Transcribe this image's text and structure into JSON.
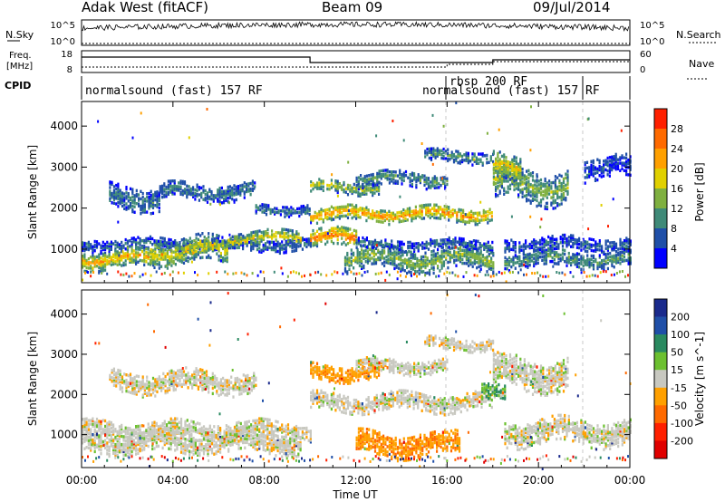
{
  "header": {
    "radar_title": "Adak West (fitACF)",
    "beam": "Beam 09",
    "date": "09/Jul/2014"
  },
  "nsky_panel": {
    "left_label": "N.Sky",
    "right_label": "N.Search",
    "left_ticks": [
      "10^5",
      "10^0"
    ],
    "right_ticks": [
      "10^5",
      "10^0"
    ]
  },
  "freq_panel": {
    "left_label_1": "Freq.",
    "left_label_2": "[MHz]",
    "left_ticks": [
      "18",
      "8"
    ],
    "right_label": "Nave",
    "right_ticks": [
      "60",
      "0"
    ]
  },
  "cpid_panel": {
    "label": "CPID",
    "segments": [
      {
        "text": "normalsound (fast) 157 RF",
        "start_h": 0
      },
      {
        "text": "rbsp 200 RF",
        "start_h": 16
      },
      {
        "text": "normalsound (fast) 157 RF",
        "start_h": 16
      }
    ]
  },
  "chart_data": [
    {
      "type": "heatmap",
      "name_label": "power-panel",
      "ylabel": "Slant Range [km]",
      "y_ticks": [
        "1000",
        "2000",
        "3000",
        "4000"
      ],
      "ylim": [
        180,
        4600
      ],
      "x_ticks": [
        "00:00",
        "04:00",
        "08:00",
        "12:00",
        "16:00",
        "20:00",
        "00:00"
      ],
      "colorbar_label": "Power [dB]",
      "colorbar_ticks": [
        "28",
        "24",
        "20",
        "16",
        "12",
        "8",
        "4"
      ],
      "colorbar_colors": [
        "#0000ff",
        "#1f4fa8",
        "#3f8a78",
        "#7fb040",
        "#e0d000",
        "#ffa000",
        "#ff6a00",
        "#ff2000"
      ],
      "echo_bands": [
        {
          "t_start": 1.2,
          "t_end": 3.4,
          "r_center": 2300,
          "r_width": 280,
          "power": 8
        },
        {
          "t_start": 3.4,
          "t_end": 7.6,
          "r_center": 2450,
          "r_width": 200,
          "power": 8
        },
        {
          "t_start": 7.6,
          "t_end": 10.0,
          "r_center": 2000,
          "r_width": 120,
          "power": 8
        },
        {
          "t_start": 0.0,
          "t_end": 10.0,
          "r_center": 1150,
          "r_width": 150,
          "power": 6
        },
        {
          "t_start": 0.0,
          "t_end": 3.2,
          "r_center": 800,
          "r_width": 220,
          "power": 22
        },
        {
          "t_start": 3.0,
          "t_end": 6.4,
          "r_center": 1000,
          "r_width": 300,
          "power": 18
        },
        {
          "t_start": 6.4,
          "t_end": 9.6,
          "r_center": 1300,
          "r_width": 160,
          "power": 20
        },
        {
          "t_start": 10.0,
          "t_end": 18.0,
          "r_center": 1900,
          "r_width": 180,
          "power": 24
        },
        {
          "t_start": 10.0,
          "t_end": 12.0,
          "r_center": 1300,
          "r_width": 220,
          "power": 26
        },
        {
          "t_start": 10.0,
          "t_end": 13.0,
          "r_center": 2550,
          "r_width": 150,
          "power": 16
        },
        {
          "t_start": 12.0,
          "t_end": 16.0,
          "r_center": 2750,
          "r_width": 180,
          "power": 10
        },
        {
          "t_start": 11.5,
          "t_end": 18.0,
          "r_center": 800,
          "r_width": 280,
          "power": 14
        },
        {
          "t_start": 12.0,
          "t_end": 18.0,
          "r_center": 1150,
          "r_width": 120,
          "power": 6
        },
        {
          "t_start": 15.0,
          "t_end": 18.0,
          "r_center": 3300,
          "r_width": 150,
          "power": 10
        },
        {
          "t_start": 18.0,
          "t_end": 21.3,
          "r_center": 2600,
          "r_width": 400,
          "power": 14
        },
        {
          "t_start": 18.0,
          "t_end": 19.2,
          "r_center": 3000,
          "r_width": 300,
          "power": 20
        },
        {
          "t_start": 18.5,
          "t_end": 24.0,
          "r_center": 1150,
          "r_width": 160,
          "power": 6
        },
        {
          "t_start": 18.5,
          "t_end": 24.0,
          "r_center": 800,
          "r_width": 200,
          "power": 10
        },
        {
          "t_start": 22.0,
          "t_end": 24.0,
          "r_center": 3000,
          "r_width": 250,
          "power": 4
        }
      ]
    },
    {
      "type": "heatmap",
      "name_label": "velocity-panel",
      "ylabel": "Slant Range [km]",
      "y_ticks": [
        "1000",
        "2000",
        "3000",
        "4000"
      ],
      "ylim": [
        180,
        4600
      ],
      "x_ticks": [
        "00:00",
        "04:00",
        "08:00",
        "12:00",
        "16:00",
        "20:00",
        "00:00"
      ],
      "xlabel": "Time UT",
      "colorbar_label": "Velocity [m s^-1]",
      "colorbar_ticks": [
        "200",
        "100",
        "50",
        "15",
        "-15",
        "-50",
        "-100",
        "-200"
      ],
      "colorbar_colors": [
        "#1a2a8c",
        "#1f4fa8",
        "#2a8a60",
        "#6cc030",
        "#c8c8c0",
        "#ffa000",
        "#ff6a00",
        "#ff2000",
        "#e00000"
      ],
      "echo_bands": [
        {
          "t_start": 1.2,
          "t_end": 7.6,
          "r_center": 2350,
          "r_width": 260,
          "velocity": 0
        },
        {
          "t_start": 0.0,
          "t_end": 10.0,
          "r_center": 1150,
          "r_width": 220,
          "velocity": 0
        },
        {
          "t_start": 0.0,
          "t_end": 9.6,
          "r_center": 850,
          "r_width": 260,
          "velocity": 0
        },
        {
          "t_start": 10.0,
          "t_end": 18.0,
          "r_center": 1850,
          "r_width": 220,
          "velocity": 0
        },
        {
          "t_start": 10.0,
          "t_end": 13.0,
          "r_center": 2600,
          "r_width": 200,
          "velocity": -40
        },
        {
          "t_start": 12.0,
          "t_end": 16.0,
          "r_center": 2750,
          "r_width": 180,
          "velocity": 0
        },
        {
          "t_start": 12.0,
          "t_end": 16.5,
          "r_center": 800,
          "r_width": 280,
          "velocity": -40
        },
        {
          "t_start": 15.0,
          "t_end": 18.0,
          "r_center": 3300,
          "r_width": 150,
          "velocity": 0
        },
        {
          "t_start": 18.0,
          "t_end": 21.3,
          "r_center": 2550,
          "r_width": 400,
          "velocity": 0
        },
        {
          "t_start": 17.5,
          "t_end": 18.5,
          "r_center": 2050,
          "r_width": 200,
          "velocity": 30
        },
        {
          "t_start": 18.5,
          "t_end": 24.0,
          "r_center": 1100,
          "r_width": 300,
          "velocity": 0
        }
      ]
    }
  ]
}
